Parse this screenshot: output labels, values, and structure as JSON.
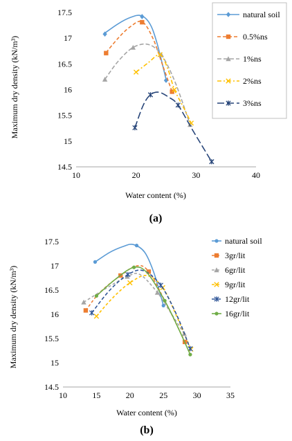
{
  "chart_data": [
    {
      "type": "scatter",
      "caption": "(a)",
      "xlabel": "Water content (%)",
      "ylabel": "Maximum dry density (kN/m³)",
      "xlim": [
        10,
        40
      ],
      "ylim": [
        14.5,
        17.5
      ],
      "xticks": [
        10,
        20,
        30,
        40
      ],
      "yticks": [
        14.5,
        15,
        15.5,
        16,
        16.5,
        17,
        17.5
      ],
      "grid": false,
      "legend_position": "top-right",
      "series": [
        {
          "name": "natural soil",
          "color": "#5B9BD5",
          "dash": "",
          "marker": "diamond",
          "points": [
            [
              14.8,
              17.08
            ],
            [
              21.0,
              17.42
            ],
            [
              25.0,
              16.18
            ]
          ],
          "curve": [
            [
              14.8,
              17.1
            ],
            [
              17,
              17.28
            ],
            [
              19,
              17.4
            ],
            [
              20.8,
              17.44
            ],
            [
              22.3,
              17.28
            ],
            [
              23.5,
              16.9
            ],
            [
              25.0,
              16.2
            ]
          ]
        },
        {
          "name": "0.5%ns",
          "color": "#ED7D31",
          "dash": "5,3",
          "marker": "square",
          "points": [
            [
              15.0,
              16.71
            ],
            [
              21.0,
              17.31
            ],
            [
              26.0,
              15.96
            ]
          ],
          "curve": [
            [
              15.0,
              16.72
            ],
            [
              17,
              17.0
            ],
            [
              19,
              17.22
            ],
            [
              21.0,
              17.32
            ],
            [
              22.8,
              17.0
            ],
            [
              24.5,
              16.45
            ],
            [
              26.0,
              15.96
            ]
          ]
        },
        {
          "name": "1%ns",
          "color": "#A5A5A5",
          "dash": "6,3",
          "marker": "triangle",
          "points": [
            [
              14.8,
              16.2
            ],
            [
              19.5,
              16.82
            ],
            [
              24.2,
              16.68
            ],
            [
              29.0,
              15.32
            ]
          ],
          "curve": [
            [
              14.8,
              16.2
            ],
            [
              17,
              16.55
            ],
            [
              19.5,
              16.82
            ],
            [
              22,
              16.88
            ],
            [
              24.2,
              16.68
            ],
            [
              26.5,
              16.15
            ],
            [
              29.0,
              15.32
            ]
          ]
        },
        {
          "name": "2%ns",
          "color": "#FFC000",
          "dash": "6,3,2,3",
          "marker": "x",
          "points": [
            [
              20.0,
              16.34
            ],
            [
              24.0,
              16.68
            ],
            [
              26.4,
              16.0
            ],
            [
              29.2,
              15.35
            ]
          ],
          "curve": [
            [
              20.0,
              16.34
            ],
            [
              22,
              16.52
            ],
            [
              24.0,
              16.68
            ],
            [
              25.3,
              16.4
            ],
            [
              26.4,
              16.0
            ],
            [
              27.8,
              15.68
            ],
            [
              29.2,
              15.35
            ]
          ]
        },
        {
          "name": "3%ns",
          "color": "#264478",
          "dash": "10,4",
          "marker": "asterisk",
          "points": [
            [
              19.8,
              15.26
            ],
            [
              22.4,
              15.9
            ],
            [
              27.0,
              15.7
            ],
            [
              32.6,
              14.6
            ]
          ],
          "curve": [
            [
              19.8,
              15.26
            ],
            [
              21.2,
              15.7
            ],
            [
              22.4,
              15.9
            ],
            [
              23.8,
              15.95
            ],
            [
              25.5,
              15.85
            ],
            [
              27.0,
              15.7
            ],
            [
              29.5,
              15.2
            ],
            [
              32.6,
              14.6
            ]
          ]
        }
      ]
    },
    {
      "type": "scatter",
      "caption": "(b)",
      "xlabel": "Water content (%)",
      "ylabel": "Maximum dry density (kN/m³)",
      "xlim": [
        10,
        35
      ],
      "ylim": [
        14.5,
        17.5
      ],
      "xticks": [
        10,
        15,
        20,
        25,
        30,
        35
      ],
      "yticks": [
        14.5,
        15,
        15.5,
        16,
        16.5,
        17,
        17.5
      ],
      "grid": false,
      "legend_position": "top-right",
      "series": [
        {
          "name": "natural soil",
          "color": "#5B9BD5",
          "dash": "",
          "marker": "dot",
          "points": [
            [
              14.8,
              17.08
            ],
            [
              21.0,
              17.42
            ],
            [
              25.0,
              16.18
            ]
          ],
          "curve": [
            [
              14.8,
              17.08
            ],
            [
              17,
              17.28
            ],
            [
              19,
              17.4
            ],
            [
              20.5,
              17.44
            ],
            [
              22.2,
              17.28
            ],
            [
              23.6,
              16.85
            ],
            [
              25.0,
              16.18
            ]
          ]
        },
        {
          "name": "3gr/lit",
          "color": "#ED7D31",
          "dash": "4,3",
          "marker": "square",
          "points": [
            [
              13.4,
              16.08
            ],
            [
              18.6,
              16.8
            ],
            [
              22.8,
              16.88
            ],
            [
              28.2,
              15.43
            ]
          ],
          "curve": [
            [
              13.4,
              16.08
            ],
            [
              15.5,
              16.45
            ],
            [
              18.6,
              16.8
            ],
            [
              21,
              17.0
            ],
            [
              22.8,
              16.88
            ],
            [
              25.5,
              16.2
            ],
            [
              28.2,
              15.43
            ]
          ]
        },
        {
          "name": "6gr/lit",
          "color": "#A5A5A5",
          "dash": "4,3",
          "marker": "triangle",
          "points": [
            [
              13.1,
              16.25
            ],
            [
              19.6,
              16.78
            ],
            [
              24.1,
              16.45
            ],
            [
              28.1,
              15.6
            ]
          ],
          "curve": [
            [
              13.1,
              16.25
            ],
            [
              16,
              16.5
            ],
            [
              19.6,
              16.78
            ],
            [
              21.5,
              16.82
            ],
            [
              24.1,
              16.45
            ],
            [
              26,
              16.05
            ],
            [
              28.1,
              15.6
            ]
          ]
        },
        {
          "name": "9gr/lit",
          "color": "#FFC000",
          "dash": "4,3",
          "marker": "x",
          "points": [
            [
              15.0,
              15.96
            ],
            [
              20.0,
              16.65
            ],
            [
              24.9,
              16.55
            ],
            [
              29.1,
              15.28
            ]
          ],
          "curve": [
            [
              15.0,
              15.96
            ],
            [
              17.5,
              16.35
            ],
            [
              20.0,
              16.65
            ],
            [
              22.5,
              16.8
            ],
            [
              24.9,
              16.55
            ],
            [
              27,
              15.95
            ],
            [
              29.1,
              15.28
            ]
          ]
        },
        {
          "name": "12gr/lit",
          "color": "#2F5597",
          "dash": "5,3",
          "marker": "asterisk",
          "points": [
            [
              14.3,
              16.03
            ],
            [
              19.7,
              16.82
            ],
            [
              24.6,
              16.6
            ],
            [
              29.0,
              15.29
            ]
          ],
          "curve": [
            [
              14.3,
              16.03
            ],
            [
              17,
              16.5
            ],
            [
              19.7,
              16.82
            ],
            [
              22,
              16.9
            ],
            [
              24.6,
              16.6
            ],
            [
              27,
              15.98
            ],
            [
              29.0,
              15.29
            ]
          ]
        },
        {
          "name": "16gr/lit",
          "color": "#70AD47",
          "dash": "",
          "marker": "dot",
          "points": [
            [
              15.0,
              16.38
            ],
            [
              20.6,
              16.97
            ],
            [
              25.2,
              16.28
            ],
            [
              29.0,
              15.17
            ]
          ],
          "curve": [
            [
              15.0,
              16.38
            ],
            [
              17.8,
              16.72
            ],
            [
              20.6,
              16.97
            ],
            [
              22.6,
              16.85
            ],
            [
              25.2,
              16.28
            ],
            [
              27.2,
              15.72
            ],
            [
              29.0,
              15.17
            ]
          ]
        }
      ]
    }
  ]
}
